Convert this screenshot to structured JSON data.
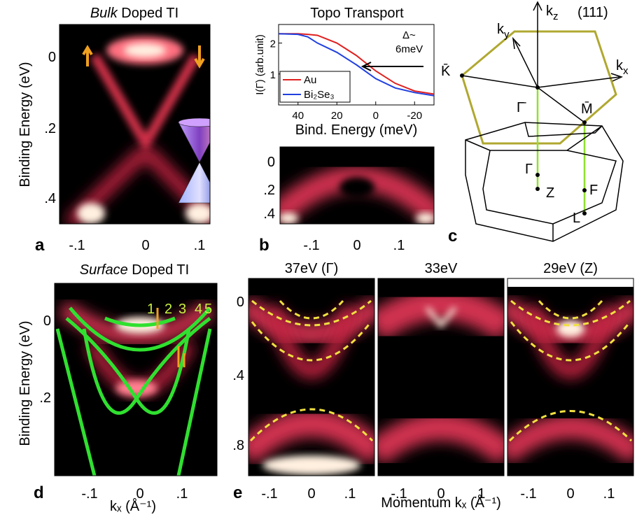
{
  "panel_a": {
    "label": "a",
    "title_italic": "Bulk",
    "title_rest": "Doped TI",
    "y_label": "Binding Energy (eV)",
    "y_ticks": [
      "0",
      ".2",
      ".4"
    ],
    "x_ticks": [
      "-.1",
      "0",
      ".1"
    ]
  },
  "panel_b": {
    "label": "b",
    "title": "Topo Transport",
    "annotation_1": "Δ~",
    "annotation_2": "6meV",
    "image_y_ticks": [
      "0",
      ".2",
      ".4"
    ],
    "image_x_ticks": [
      "-.1",
      "0",
      ".1"
    ]
  },
  "chart_data": {
    "type": "line",
    "x_label": "Bind. Energy (meV)",
    "y_label": "I(Γ) (arb.unit)",
    "x": [
      50,
      40,
      35,
      30,
      20,
      10,
      0,
      -10,
      -20,
      -30
    ],
    "series": [
      {
        "name": "Au",
        "color": "#e02020",
        "values": [
          2.3,
          2.3,
          2.28,
          2.25,
          2.0,
          1.6,
          1.1,
          0.7,
          0.45,
          0.35
        ]
      },
      {
        "name": "Bi₂Se₃",
        "color": "#2040e0",
        "values": [
          2.3,
          2.28,
          2.2,
          2.0,
          1.7,
          1.3,
          0.85,
          0.55,
          0.4,
          0.3
        ]
      }
    ],
    "xlim": [
      50,
      -30
    ],
    "xticks": [
      40,
      20,
      0,
      -20
    ],
    "ylim": [
      0,
      2.6
    ],
    "yticks": [
      1,
      2
    ],
    "legend": "lower-left"
  },
  "panel_c": {
    "label": "c",
    "kz": {
      "base": "k",
      "sub": "z"
    },
    "ky": {
      "base": "k",
      "sub": "y"
    },
    "kx": {
      "base": "k",
      "sub": "x"
    },
    "plane": "(111)",
    "points": [
      "K̄",
      "Γ̄",
      "M̄",
      "Γ",
      "Z",
      "F",
      "L"
    ]
  },
  "panel_d": {
    "label": "d",
    "title_italic": "Surface",
    "title_rest": "Doped TI",
    "y_label": "Binding Energy (eV)",
    "y_ticks": [
      "0",
      ".2"
    ],
    "x_ticks": [
      "-.1",
      "0",
      ".1"
    ],
    "x_label": "kₓ (Å⁻¹)",
    "band_numbers": [
      "1",
      "2",
      "3",
      "4",
      "5"
    ]
  },
  "panel_e": {
    "label": "e",
    "titles": [
      "37eV (Γ)",
      "33eV",
      "29eV (Z)"
    ],
    "y_ticks": [
      "0",
      ".4",
      ".8"
    ],
    "x_ticks": [
      "-.1",
      "0",
      ".1"
    ],
    "x_label": "Momentum kₓ (Å⁻¹)"
  }
}
